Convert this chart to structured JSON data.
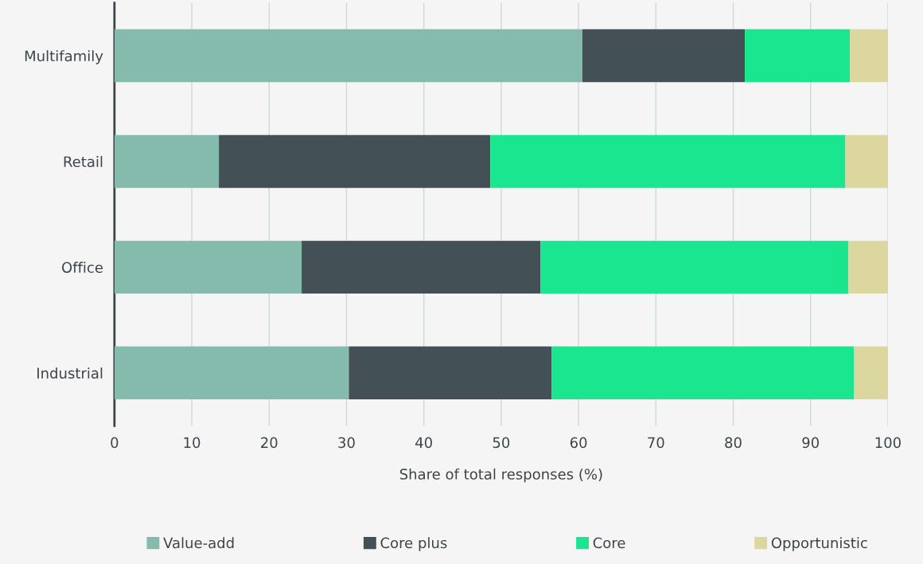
{
  "chart_data": {
    "type": "bar",
    "orientation": "horizontal",
    "stacked": true,
    "xlabel": "Share of total responses (%)",
    "categories": [
      "Multifamily",
      "Retail",
      "Office",
      "Industrial"
    ],
    "series": [
      {
        "name": "Value-add",
        "color": "#84bbad",
        "values": [
          60.5,
          13.5,
          24.2,
          30.3
        ]
      },
      {
        "name": "Core plus",
        "color": "#435156",
        "values": [
          21.0,
          35.1,
          30.9,
          26.2
        ]
      },
      {
        "name": "Core",
        "color": "#19e68e",
        "values": [
          13.6,
          45.9,
          39.8,
          39.1
        ]
      },
      {
        "name": "Opportunistic",
        "color": "#dbd79e",
        "values": [
          4.9,
          5.5,
          5.1,
          4.4
        ]
      }
    ],
    "xlim": [
      0,
      100
    ],
    "xticks": [
      0,
      10,
      20,
      30,
      40,
      50,
      60,
      70,
      80,
      90,
      100
    ],
    "grid": "x",
    "legend": "bottom"
  }
}
